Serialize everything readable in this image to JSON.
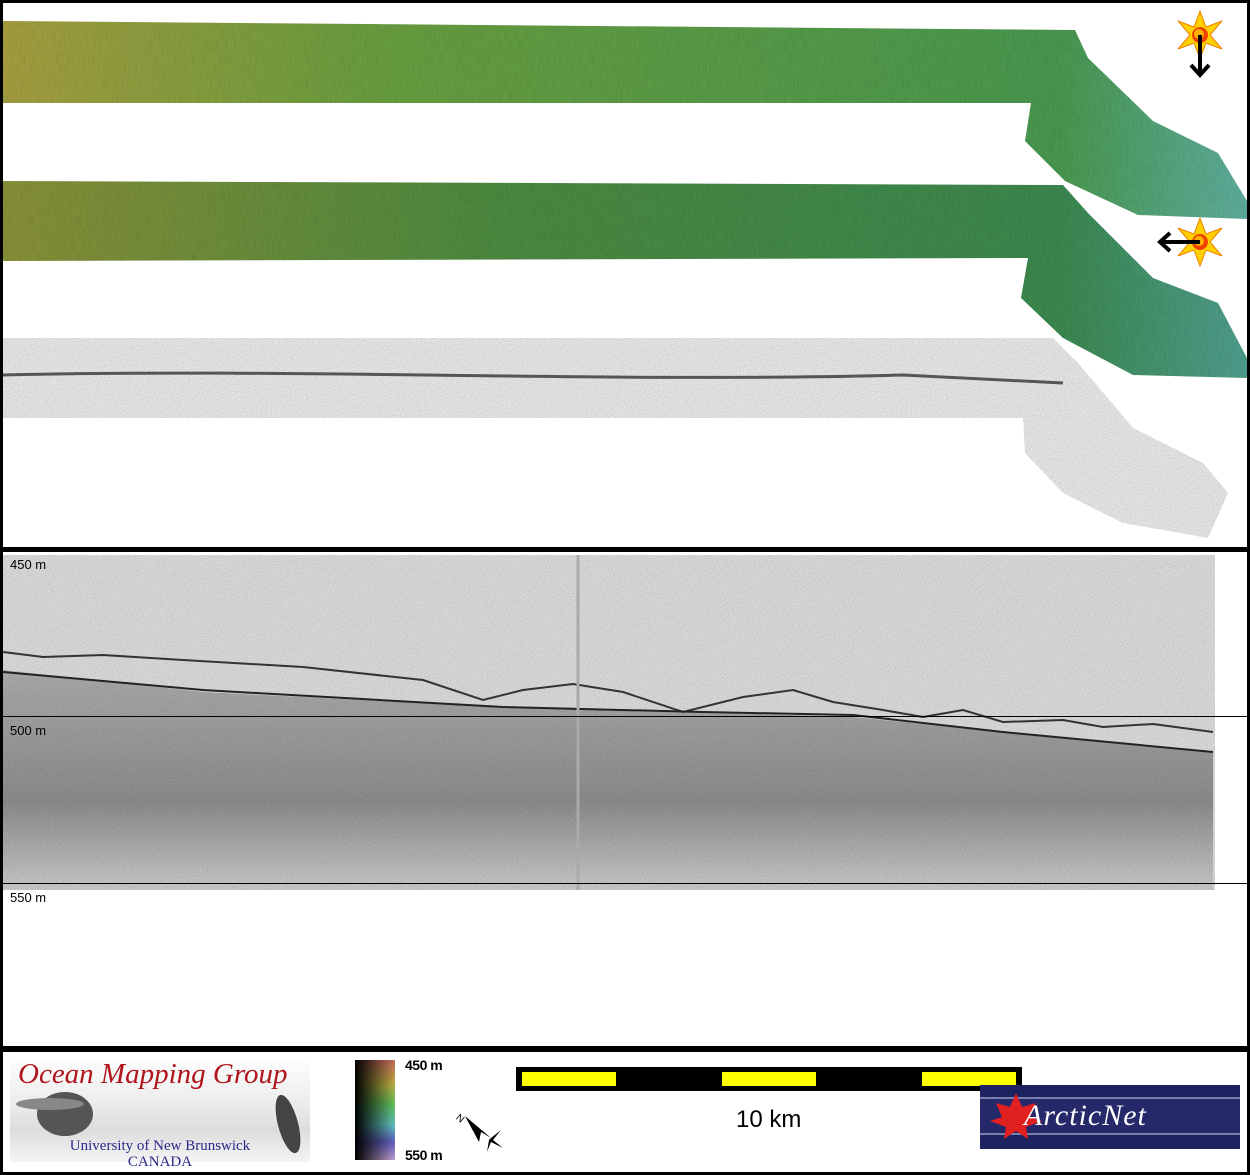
{
  "profile": {
    "depth_labels": [
      "450 m",
      "500 m",
      "550 m"
    ]
  },
  "sun_icons": [
    {
      "name": "sun-illumination-from-north",
      "arrow": "down"
    },
    {
      "name": "sun-illumination-from-east",
      "arrow": "left"
    }
  ],
  "footer": {
    "omg_logo": {
      "title": "Ocean Mapping Group",
      "university": "University of New Brunswick",
      "country": "CANADA"
    },
    "colorbar": {
      "top_label": "450 m",
      "bottom_label": "550 m"
    },
    "north_arrow": "N",
    "scale_bar": {
      "label": "10 km",
      "colors": [
        "#ffff00",
        "#000000"
      ]
    },
    "arcticnet_logo": {
      "text": "ArcticNet"
    }
  }
}
